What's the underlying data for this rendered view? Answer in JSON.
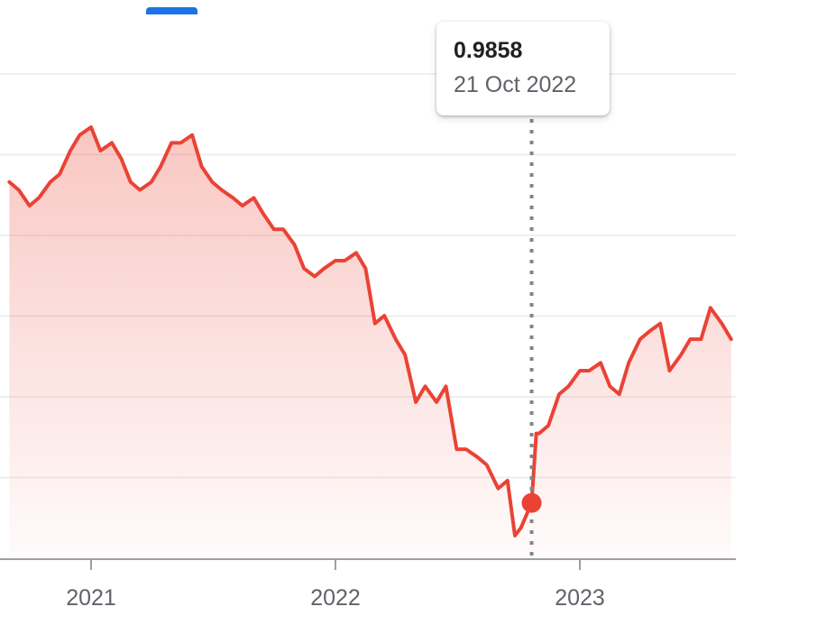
{
  "tooltip": {
    "value": "0.9858",
    "date": "21 Oct 2022"
  },
  "colors": {
    "line": "#ea4335",
    "active_tab": "#1a73e8",
    "grid": "#e8eaed",
    "axis": "#9aa0a6"
  },
  "chart_data": {
    "type": "area",
    "title": "",
    "xlabel": "",
    "ylabel": "",
    "x_ticks": [
      "2021",
      "2022",
      "2023"
    ],
    "grid": true,
    "y_range": [
      0.95,
      1.26
    ],
    "highlight": {
      "date": "2022-10-21",
      "value": 0.9858
    },
    "series": [
      {
        "x": [
          "2020-09-01",
          "2020-09-15",
          "2020-10-01",
          "2020-10-15",
          "2020-11-01",
          "2020-11-15",
          "2020-12-01",
          "2020-12-15",
          "2021-01-01",
          "2021-01-15",
          "2021-02-01",
          "2021-02-15",
          "2021-03-01",
          "2021-03-15",
          "2021-04-01",
          "2021-04-15",
          "2021-05-01",
          "2021-05-15",
          "2021-06-01",
          "2021-06-15",
          "2021-07-01",
          "2021-07-15",
          "2021-08-01",
          "2021-08-15",
          "2021-09-01",
          "2021-09-15",
          "2021-10-01",
          "2021-10-15",
          "2021-11-01",
          "2021-11-15",
          "2021-12-01",
          "2021-12-15",
          "2022-01-01",
          "2022-01-15",
          "2022-02-01",
          "2022-02-15",
          "2022-03-01",
          "2022-03-15",
          "2022-04-01",
          "2022-04-15",
          "2022-05-01",
          "2022-05-15",
          "2022-06-01",
          "2022-06-15",
          "2022-07-01",
          "2022-07-15",
          "2022-08-01",
          "2022-08-15",
          "2022-09-01",
          "2022-09-15",
          "2022-09-26",
          "2022-10-05",
          "2022-10-21",
          "2022-10-28",
          "2022-11-01",
          "2022-11-15",
          "2022-12-01",
          "2022-12-15",
          "2023-01-01",
          "2023-01-15",
          "2023-02-01",
          "2023-02-15",
          "2023-03-01",
          "2023-03-15",
          "2023-04-01",
          "2023-04-15",
          "2023-05-01",
          "2023-05-15",
          "2023-06-01",
          "2023-06-15",
          "2023-07-01",
          "2023-07-15",
          "2023-08-01",
          "2023-08-15"
        ],
        "values": [
          1.19,
          1.185,
          1.175,
          1.18,
          1.19,
          1.195,
          1.21,
          1.22,
          1.225,
          1.21,
          1.215,
          1.205,
          1.19,
          1.185,
          1.19,
          1.2,
          1.215,
          1.215,
          1.22,
          1.2,
          1.19,
          1.185,
          1.18,
          1.175,
          1.18,
          1.17,
          1.16,
          1.16,
          1.15,
          1.135,
          1.13,
          1.135,
          1.14,
          1.14,
          1.145,
          1.135,
          1.1,
          1.105,
          1.09,
          1.08,
          1.05,
          1.06,
          1.05,
          1.06,
          1.02,
          1.02,
          1.015,
          1.01,
          0.995,
          1.0,
          0.965,
          0.97,
          0.9858,
          1.03,
          1.03,
          1.035,
          1.055,
          1.06,
          1.07,
          1.07,
          1.075,
          1.06,
          1.055,
          1.075,
          1.09,
          1.095,
          1.1,
          1.07,
          1.08,
          1.09,
          1.09,
          1.11,
          1.1,
          1.09
        ]
      }
    ]
  }
}
